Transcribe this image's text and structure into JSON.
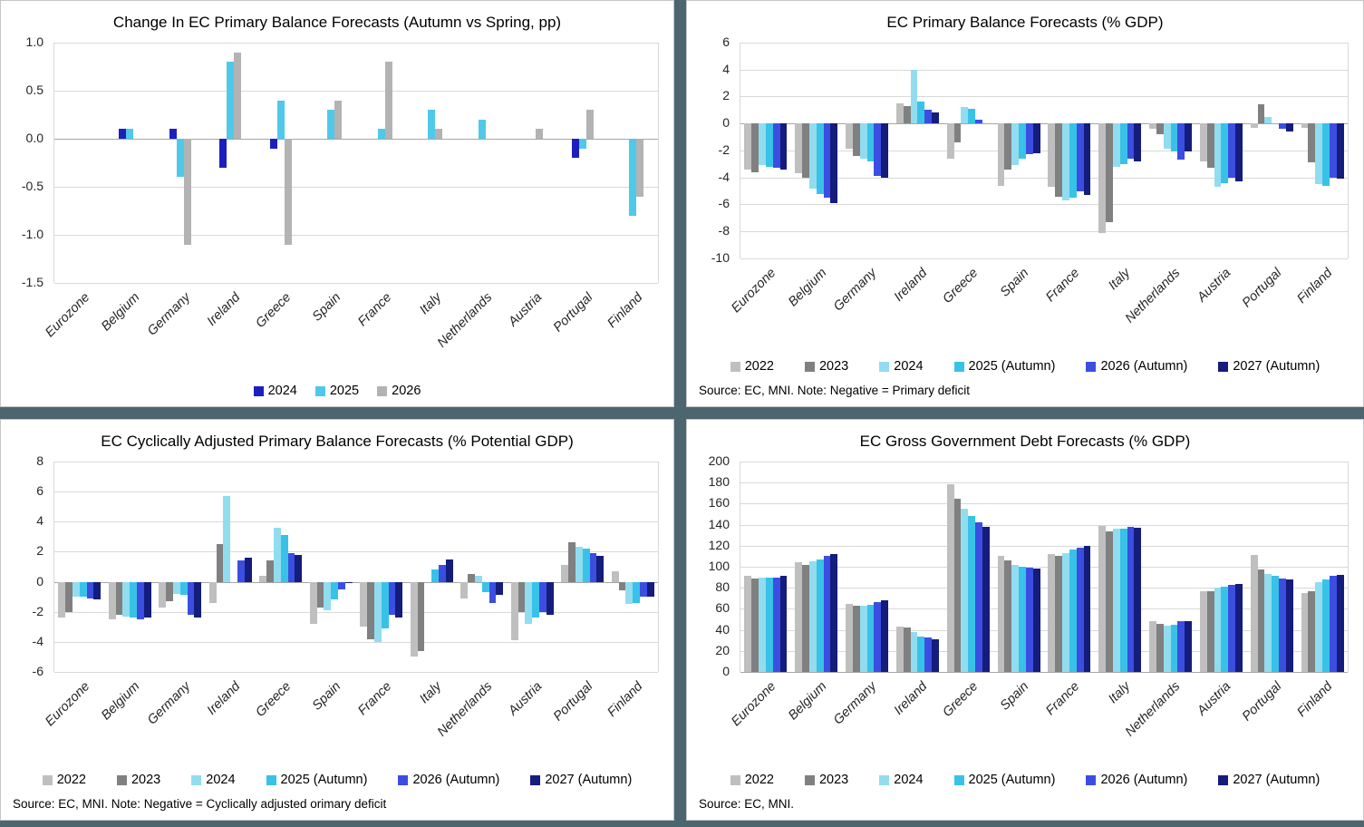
{
  "theme": {
    "divider_color": "#4C656E",
    "panel_border_color": "#C6C6C6",
    "grid_color": "#D9D9D9"
  },
  "chart_data": [
    {
      "type": "bar",
      "title": "Change In EC Primary Balance Forecasts (Autumn vs Spring, pp)",
      "categories": [
        "Eurozone",
        "Belgium",
        "Germany",
        "Ireland",
        "Greece",
        "Spain",
        "France",
        "Italy",
        "Netherlands",
        "Austria",
        "Portugal",
        "Finland"
      ],
      "series": [
        {
          "name": "2024",
          "color": "#1C1FBE",
          "values": [
            0,
            0.1,
            0.1,
            -0.3,
            -0.1,
            0,
            0,
            0,
            0,
            0,
            -0.2,
            0
          ]
        },
        {
          "name": "2025",
          "color": "#4FC9EA",
          "values": [
            0,
            0.1,
            -0.4,
            0.8,
            0.4,
            0.3,
            0.1,
            0.3,
            0.2,
            0,
            -0.1,
            -0.8
          ]
        },
        {
          "name": "2026",
          "color": "#B3B3B3",
          "values": [
            0,
            0,
            -1.1,
            0.9,
            -1.1,
            0.4,
            0.8,
            0.1,
            0,
            0.1,
            0.3,
            -0.6
          ]
        }
      ],
      "ylim": [
        -1.5,
        1.0
      ],
      "ytick_step": 0.5,
      "ytick_decimals": 1,
      "grid": true,
      "legend_position": "bottom",
      "source": ""
    },
    {
      "type": "bar",
      "title": "EC Primary Balance Forecasts (% GDP)",
      "categories": [
        "Eurozone",
        "Belgium",
        "Germany",
        "Ireland",
        "Greece",
        "Spain",
        "France",
        "Italy",
        "Netherlands",
        "Austria",
        "Portugal",
        "Finland"
      ],
      "series": [
        {
          "name": "2022",
          "color": "#BFBFBF",
          "values": [
            -3.4,
            -3.7,
            -1.9,
            1.5,
            -2.6,
            -4.6,
            -4.7,
            -8.1,
            -0.4,
            -2.8,
            -0.3,
            -0.3
          ]
        },
        {
          "name": "2023",
          "color": "#808080",
          "values": [
            -3.6,
            -4.0,
            -2.4,
            1.3,
            -1.4,
            -3.4,
            -5.4,
            -7.3,
            -0.8,
            -3.3,
            1.4,
            -2.9
          ]
        },
        {
          "name": "2024",
          "color": "#92DCF0",
          "values": [
            -3.1,
            -4.8,
            -2.6,
            4.0,
            1.2,
            -3.1,
            -5.7,
            -3.2,
            -1.9,
            -4.7,
            0.5,
            -4.5
          ]
        },
        {
          "name": "2025 (Autumn)",
          "color": "#38C2E8",
          "values": [
            -3.2,
            -5.2,
            -2.8,
            1.6,
            1.1,
            -2.6,
            -5.5,
            -3.0,
            -2.1,
            -4.4,
            0,
            -4.6
          ]
        },
        {
          "name": "2026 (Autumn)",
          "color": "#3C4EE0",
          "values": [
            -3.3,
            -5.5,
            -3.9,
            1.0,
            0.3,
            -2.3,
            -5.0,
            -2.6,
            -2.7,
            -4.0,
            -0.4,
            -4.0
          ]
        },
        {
          "name": "2027 (Autumn)",
          "color": "#141C7C",
          "values": [
            -3.4,
            -5.9,
            -4.0,
            0.8,
            0,
            -2.2,
            -5.3,
            -2.8,
            -2.1,
            -4.3,
            -0.6,
            -4.1
          ]
        }
      ],
      "ylim": [
        -10,
        6
      ],
      "ytick_step": 2,
      "ytick_decimals": 0,
      "grid": true,
      "legend_position": "bottom",
      "source": "Source: EC, MNI.  Note: Negative = Primary deficit"
    },
    {
      "type": "bar",
      "title": "EC Cyclically Adjusted Primary Balance Forecasts (% Potential GDP)",
      "categories": [
        "Eurozone",
        "Belgium",
        "Germany",
        "Ireland",
        "Greece",
        "Spain",
        "France",
        "Italy",
        "Netherlands",
        "Austria",
        "Portugal",
        "Finland"
      ],
      "series": [
        {
          "name": "2022",
          "color": "#BFBFBF",
          "values": [
            -2.4,
            -2.5,
            -1.7,
            -1.4,
            0.4,
            -2.8,
            -3.0,
            -5.0,
            -1.1,
            -3.9,
            1.1,
            0.7
          ]
        },
        {
          "name": "2023",
          "color": "#808080",
          "values": [
            -2.0,
            -2.2,
            -1.3,
            2.5,
            1.4,
            -1.7,
            -3.8,
            -4.6,
            0.5,
            -2.0,
            2.6,
            -0.6
          ]
        },
        {
          "name": "2024",
          "color": "#92DCF0",
          "values": [
            -1.0,
            -2.3,
            -0.8,
            5.7,
            3.6,
            -1.9,
            -4.0,
            0,
            0.4,
            -2.8,
            2.3,
            -1.5
          ]
        },
        {
          "name": "2025 (Autumn)",
          "color": "#38C2E8",
          "values": [
            -1.0,
            -2.4,
            -0.9,
            0,
            3.1,
            -1.2,
            -3.1,
            0.8,
            -0.7,
            -2.4,
            2.2,
            -1.4
          ]
        },
        {
          "name": "2026 (Autumn)",
          "color": "#3C4EE0",
          "values": [
            -1.1,
            -2.5,
            -2.2,
            1.4,
            1.9,
            -0.5,
            -2.2,
            1.1,
            -1.4,
            -2.0,
            1.9,
            -1.0
          ]
        },
        {
          "name": "2027 (Autumn)",
          "color": "#141C7C",
          "values": [
            -1.2,
            -2.4,
            -2.4,
            1.6,
            1.8,
            -0.1,
            -2.4,
            1.5,
            -0.9,
            -2.2,
            1.7,
            -1.0
          ]
        }
      ],
      "ylim": [
        -6,
        8
      ],
      "ytick_step": 2,
      "ytick_decimals": 0,
      "grid": true,
      "legend_position": "bottom",
      "source": "Source: EC, MNI.  Note: Negative = Cyclically adjusted orimary deficit"
    },
    {
      "type": "bar",
      "title": "EC Gross Government Debt Forecasts (% GDP)",
      "categories": [
        "Eurozone",
        "Belgium",
        "Germany",
        "Ireland",
        "Greece",
        "Spain",
        "France",
        "Italy",
        "Netherlands",
        "Austria",
        "Portugal",
        "Finland"
      ],
      "series": [
        {
          "name": "2022",
          "color": "#BFBFBF",
          "values": [
            91,
            104,
            65,
            43,
            178,
            110,
            112,
            139,
            48,
            77,
            111,
            75
          ]
        },
        {
          "name": "2023",
          "color": "#808080",
          "values": [
            89,
            102,
            63,
            42,
            165,
            106,
            110,
            134,
            46,
            77,
            97,
            77
          ]
        },
        {
          "name": "2024",
          "color": "#92DCF0",
          "values": [
            90,
            105,
            63,
            38,
            155,
            102,
            113,
            136,
            44,
            80,
            93,
            85
          ]
        },
        {
          "name": "2025 (Autumn)",
          "color": "#38C2E8",
          "values": [
            90,
            107,
            64,
            34,
            148,
            100,
            116,
            136,
            45,
            81,
            91,
            88
          ]
        },
        {
          "name": "2026 (Autumn)",
          "color": "#3C4EE0",
          "values": [
            90,
            110,
            66,
            33,
            142,
            99,
            118,
            138,
            48,
            83,
            89,
            91
          ]
        },
        {
          "name": "2027 (Autumn)",
          "color": "#141C7C",
          "values": [
            91,
            112,
            68,
            31,
            138,
            98,
            120,
            137,
            48,
            84,
            88,
            92
          ]
        }
      ],
      "ylim": [
        0,
        200
      ],
      "ytick_step": 20,
      "ytick_decimals": 0,
      "grid": true,
      "legend_position": "bottom",
      "source": "Source: EC, MNI."
    }
  ]
}
